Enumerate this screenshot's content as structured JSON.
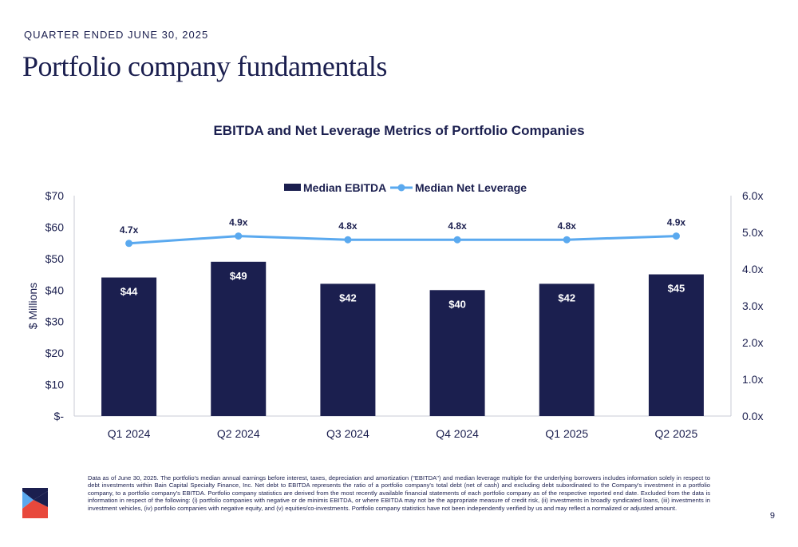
{
  "header": {
    "eyebrow": "QUARTER ENDED JUNE 30, 2025",
    "title": "Portfolio company fundamentals"
  },
  "chart_data": {
    "type": "bar",
    "title": "EBITDA and Net Leverage Metrics of Portfolio Companies",
    "categories": [
      "Q1 2024",
      "Q2 2024",
      "Q3 2024",
      "Q4 2024",
      "Q1 2025",
      "Q2 2025"
    ],
    "ylabel": "$ Millions",
    "ylim": [
      0,
      70
    ],
    "y_ticks": [
      "$-",
      "$10",
      "$20",
      "$30",
      "$40",
      "$50",
      "$60",
      "$70"
    ],
    "y2lim": [
      0,
      6
    ],
    "y2_ticks": [
      "0.0x",
      "1.0x",
      "2.0x",
      "3.0x",
      "4.0x",
      "5.0x",
      "6.0x"
    ],
    "legend_position": "top-center",
    "grid": false,
    "series": [
      {
        "name": "Median EBITDA",
        "type": "bar",
        "axis": "left",
        "color": "#1b1f4f",
        "values": [
          44,
          49,
          42,
          40,
          42,
          45
        ],
        "labels": [
          "$44",
          "$49",
          "$42",
          "$40",
          "$42",
          "$45"
        ]
      },
      {
        "name": "Median Net Leverage",
        "type": "line",
        "axis": "right",
        "color": "#5aa9ef",
        "values": [
          4.7,
          4.9,
          4.8,
          4.8,
          4.8,
          4.9
        ],
        "labels": [
          "4.7x",
          "4.9x",
          "4.8x",
          "4.8x",
          "4.8x",
          "4.9x"
        ]
      }
    ]
  },
  "footnote": "Data as of June 30, 2025. The portfolio's median annual earnings before interest, taxes, depreciation and amortization (\"EBITDA\") and median leverage multiple for the underlying borrowers includes information solely in respect to debt investments within Bain Capital Specialty Finance, Inc. Net debt to EBITDA represents the ratio of a portfolio company's total debt (net of cash) and excluding debt subordinated to the Company's investment in a portfolio company, to a portfolio company's EBITDA. Portfolio company statistics are derived from the most recently available financial statements of each portfolio company as of the respective reported end date. Excluded from the data is information in respect of the following: (i) portfolio companies with negative or de minimis EBITDA, or where EBITDA may not be the appropriate measure of credit risk, (ii) investments in broadly syndicated loans, (iii) investments in investment vehicles, (iv) portfolio companies with negative equity, and (v) equities/co-investments. Portfolio company statistics have not been independently verified by us and may reflect a normalized or adjusted amount.",
  "page_number": "9",
  "colors": {
    "navy": "#1b1f4f",
    "light_blue": "#5aa9ef",
    "logo_red": "#e8483c"
  }
}
